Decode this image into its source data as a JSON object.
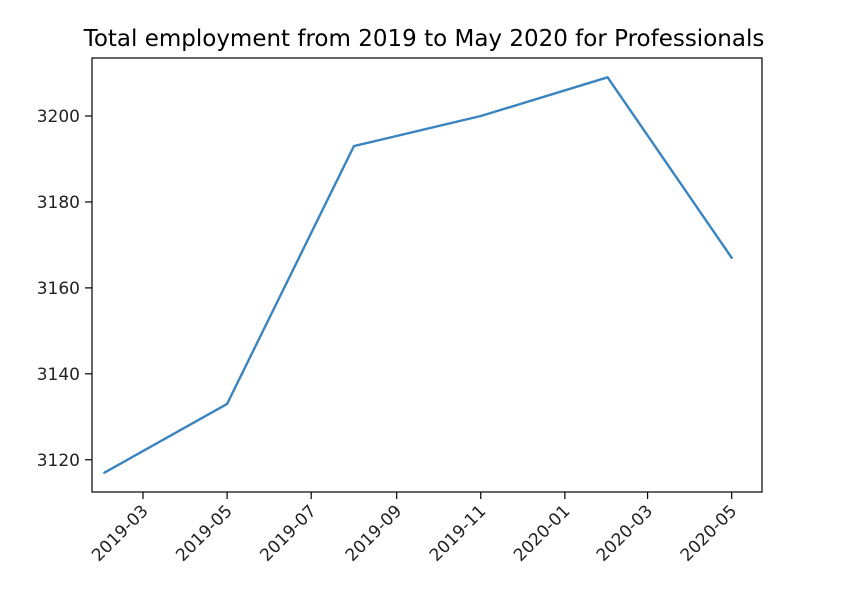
{
  "chart_data": {
    "type": "line",
    "title": "Total employment from 2019 to May 2020 for Professionals",
    "xlabel": "",
    "ylabel": "",
    "x": [
      "2019-02",
      "2019-05",
      "2019-08",
      "2019-11",
      "2020-02",
      "2020-05"
    ],
    "series": [
      {
        "values": [
          3117,
          3133,
          3193,
          3200,
          3209,
          3167
        ]
      }
    ],
    "xticks": [
      "2019-03",
      "2019-05",
      "2019-07",
      "2019-09",
      "2019-11",
      "2020-01",
      "2020-03",
      "2020-05"
    ],
    "yticks": [
      3120,
      3140,
      3160,
      3180,
      3200
    ],
    "xlim": [
      "2019-01-23",
      "2020-05-23"
    ],
    "ylim": [
      3112.5,
      3213.5
    ],
    "grid": false,
    "colors": {
      "line": "#3a84bf"
    }
  }
}
